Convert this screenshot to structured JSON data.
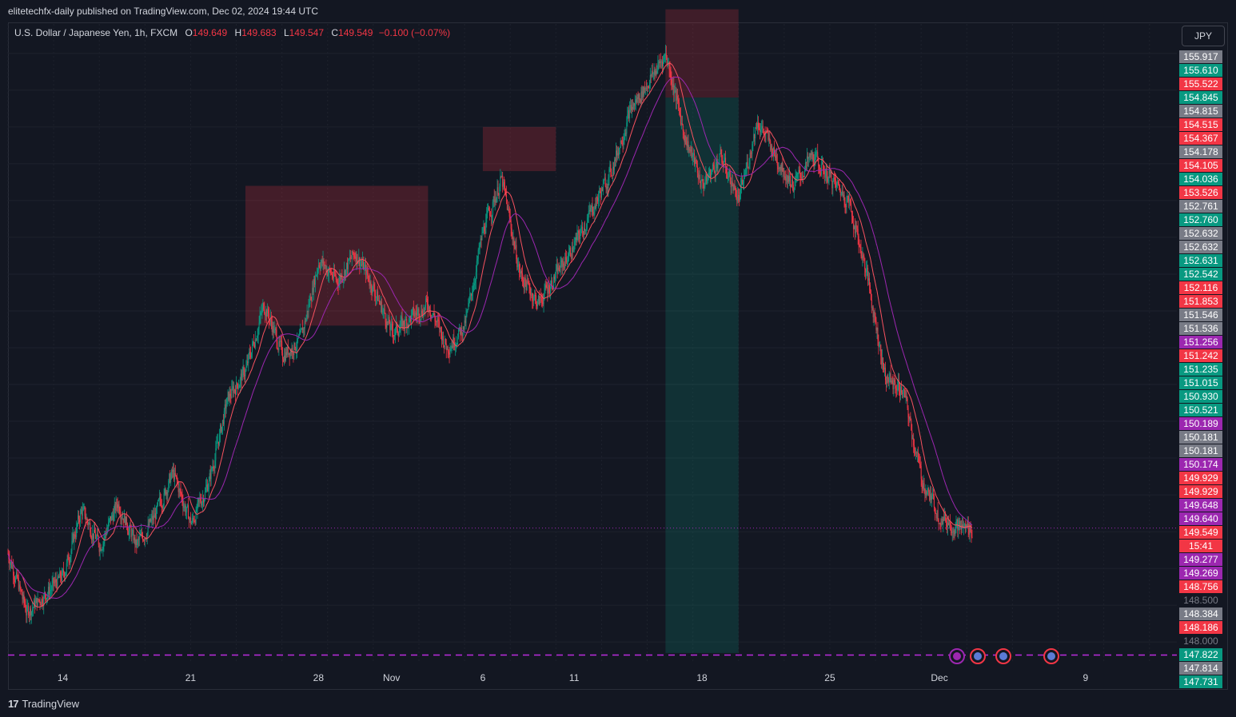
{
  "header": {
    "published": "elitetechfx-daily published on TradingView.com, Dec 02, 2024 19:44 UTC"
  },
  "legend": {
    "symbol": "U.S. Dollar / Japanese Yen, 1h, FXCM",
    "open_label": "O",
    "open": "149.649",
    "high_label": "H",
    "high": "149.683",
    "low_label": "L",
    "low": "149.547",
    "close_label": "C",
    "close": "149.549",
    "change": "−0.100 (−0.07%)"
  },
  "currency": "JPY",
  "footer": {
    "brand": "TradingView",
    "brand_logo": "17"
  },
  "colors": {
    "up": "#089981",
    "down": "#f23645",
    "bg": "#131722",
    "grid": "#1e222d",
    "ma_fast": "#f7525f",
    "ma_slow": "#9c27b0",
    "price_line": "#9c27b0"
  },
  "chart_data": {
    "type": "candlestick",
    "symbol": "USDJPY",
    "timeframe": "1h",
    "x_ticks": [
      "14",
      "21",
      "28",
      "Nov",
      "6",
      "11",
      "18",
      "25",
      "Dec",
      "9"
    ],
    "x_tick_dates": [
      "2024-10-14",
      "2024-10-21",
      "2024-10-28",
      "2024-11-01",
      "2024-11-06",
      "2024-11-11",
      "2024-11-18",
      "2024-11-25",
      "2024-12-01",
      "2024-12-09"
    ],
    "ylim": [
      147.73,
      156.4
    ],
    "last_price": 149.549,
    "countdown": "15:41",
    "support_level": 147.822,
    "price_path": [
      [
        "2024-10-11",
        149.2
      ],
      [
        "2024-10-12",
        148.4
      ],
      [
        "2024-10-14",
        148.9
      ],
      [
        "2024-10-15",
        149.8
      ],
      [
        "2024-10-16",
        149.3
      ],
      [
        "2024-10-17",
        149.9
      ],
      [
        "2024-10-18",
        149.3
      ],
      [
        "2024-10-19",
        149.7
      ],
      [
        "2024-10-20",
        150.3
      ],
      [
        "2024-10-21",
        149.6
      ],
      [
        "2024-10-22",
        150.2
      ],
      [
        "2024-10-23",
        151.3
      ],
      [
        "2024-10-24",
        151.7
      ],
      [
        "2024-10-25",
        152.6
      ],
      [
        "2024-10-26",
        151.9
      ],
      [
        "2024-10-27",
        152.1
      ],
      [
        "2024-10-28",
        153.2
      ],
      [
        "2024-10-29",
        152.9
      ],
      [
        "2024-10-30",
        153.3
      ],
      [
        "2024-10-31",
        152.8
      ],
      [
        "2024-11-01",
        152.2
      ],
      [
        "2024-11-02",
        152.4
      ],
      [
        "2024-11-03",
        152.6
      ],
      [
        "2024-11-04",
        152.0
      ],
      [
        "2024-11-05",
        152.3
      ],
      [
        "2024-11-06",
        153.6
      ],
      [
        "2024-11-07",
        154.3
      ],
      [
        "2024-11-08",
        153.0
      ],
      [
        "2024-11-09",
        152.6
      ],
      [
        "2024-11-10",
        153.0
      ],
      [
        "2024-11-11",
        153.4
      ],
      [
        "2024-11-12",
        153.9
      ],
      [
        "2024-11-13",
        154.4
      ],
      [
        "2024-11-14",
        155.2
      ],
      [
        "2024-11-15",
        155.6
      ],
      [
        "2024-11-16",
        156.0
      ],
      [
        "2024-11-17",
        154.9
      ],
      [
        "2024-11-18",
        154.2
      ],
      [
        "2024-11-19",
        154.6
      ],
      [
        "2024-11-20",
        154.0
      ],
      [
        "2024-11-21",
        155.1
      ],
      [
        "2024-11-22",
        154.6
      ],
      [
        "2024-11-23",
        154.2
      ],
      [
        "2024-11-24",
        154.6
      ],
      [
        "2024-11-25",
        154.3
      ],
      [
        "2024-11-26",
        154.0
      ],
      [
        "2024-11-27",
        153.0
      ],
      [
        "2024-11-28",
        151.6
      ],
      [
        "2024-11-29",
        151.4
      ],
      [
        "2024-11-30",
        150.2
      ],
      [
        "2024-12-01",
        149.7
      ],
      [
        "2024-12-02",
        149.55
      ]
    ],
    "zones": [
      {
        "kind": "supply",
        "from": "2024-10-24",
        "to": "2024-11-03",
        "high": 154.2,
        "low": 152.3
      },
      {
        "kind": "supply",
        "from": "2024-11-06",
        "to": "2024-11-10",
        "high": 155.0,
        "low": 154.4
      },
      {
        "kind": "stop",
        "from": "2024-11-16",
        "to": "2024-11-20",
        "high": 156.6,
        "low": 155.4
      },
      {
        "kind": "target",
        "from": "2024-11-16",
        "to": "2024-11-20",
        "high": 155.4,
        "low": 147.85
      }
    ],
    "price_labels": [
      {
        "value": "155.917",
        "color": "#787b86"
      },
      {
        "value": "155.610",
        "color": "#089981"
      },
      {
        "value": "155.522",
        "color": "#f23645"
      },
      {
        "value": "154.845",
        "color": "#089981"
      },
      {
        "value": "154.815",
        "color": "#787b86"
      },
      {
        "value": "154.515",
        "color": "#f23645"
      },
      {
        "value": "154.367",
        "color": "#f23645"
      },
      {
        "value": "154.178",
        "color": "#787b86"
      },
      {
        "value": "154.105",
        "color": "#f23645"
      },
      {
        "value": "154.036",
        "color": "#089981"
      },
      {
        "value": "153.526",
        "color": "#f23645"
      },
      {
        "value": "152.761",
        "color": "#787b86"
      },
      {
        "value": "152.760",
        "color": "#089981"
      },
      {
        "value": "152.632",
        "color": "#787b86"
      },
      {
        "value": "152.632",
        "color": "#787b86"
      },
      {
        "value": "152.631",
        "color": "#089981"
      },
      {
        "value": "152.542",
        "color": "#089981"
      },
      {
        "value": "152.116",
        "color": "#f23645"
      },
      {
        "value": "151.853",
        "color": "#f23645"
      },
      {
        "value": "151.546",
        "color": "#787b86"
      },
      {
        "value": "151.536",
        "color": "#787b86"
      },
      {
        "value": "151.256",
        "color": "#9c27b0"
      },
      {
        "value": "151.242",
        "color": "#f23645"
      },
      {
        "value": "151.235",
        "color": "#089981"
      },
      {
        "value": "151.015",
        "color": "#089981"
      },
      {
        "value": "150.930",
        "color": "#089981"
      },
      {
        "value": "150.521",
        "color": "#089981"
      },
      {
        "value": "150.189",
        "color": "#9c27b0"
      },
      {
        "value": "150.181",
        "color": "#787b86"
      },
      {
        "value": "150.181",
        "color": "#787b86"
      },
      {
        "value": "150.174",
        "color": "#9c27b0"
      },
      {
        "value": "149.929",
        "color": "#f23645"
      },
      {
        "value": "149.929",
        "color": "#f23645"
      },
      {
        "value": "149.648",
        "color": "#9c27b0"
      },
      {
        "value": "149.640",
        "color": "#9c27b0"
      },
      {
        "value": "149.549",
        "color": "#f23645"
      },
      {
        "value": "15:41",
        "color": "#f23645"
      },
      {
        "value": "149.277",
        "color": "#9c27b0"
      },
      {
        "value": "149.269",
        "color": "#9c27b0"
      },
      {
        "value": "148.756",
        "color": "#f23645"
      },
      {
        "value": "148.500",
        "color": "#131722"
      },
      {
        "value": "148.384",
        "color": "#787b86"
      },
      {
        "value": "148.186",
        "color": "#f23645"
      },
      {
        "value": "148.000",
        "color": "#131722"
      },
      {
        "value": "147.822",
        "color": "#089981"
      },
      {
        "value": "147.814",
        "color": "#787b86"
      },
      {
        "value": "147.731",
        "color": "#089981"
      }
    ],
    "event_icons": [
      {
        "date": "2024-12-02",
        "icon": "lightning-icon"
      },
      {
        "date": "2024-12-02",
        "icon": "us-flag-icon"
      },
      {
        "date": "2024-12-03",
        "icon": "us-flag-icon"
      },
      {
        "date": "2024-12-06",
        "icon": "us-flag-icon"
      }
    ]
  }
}
